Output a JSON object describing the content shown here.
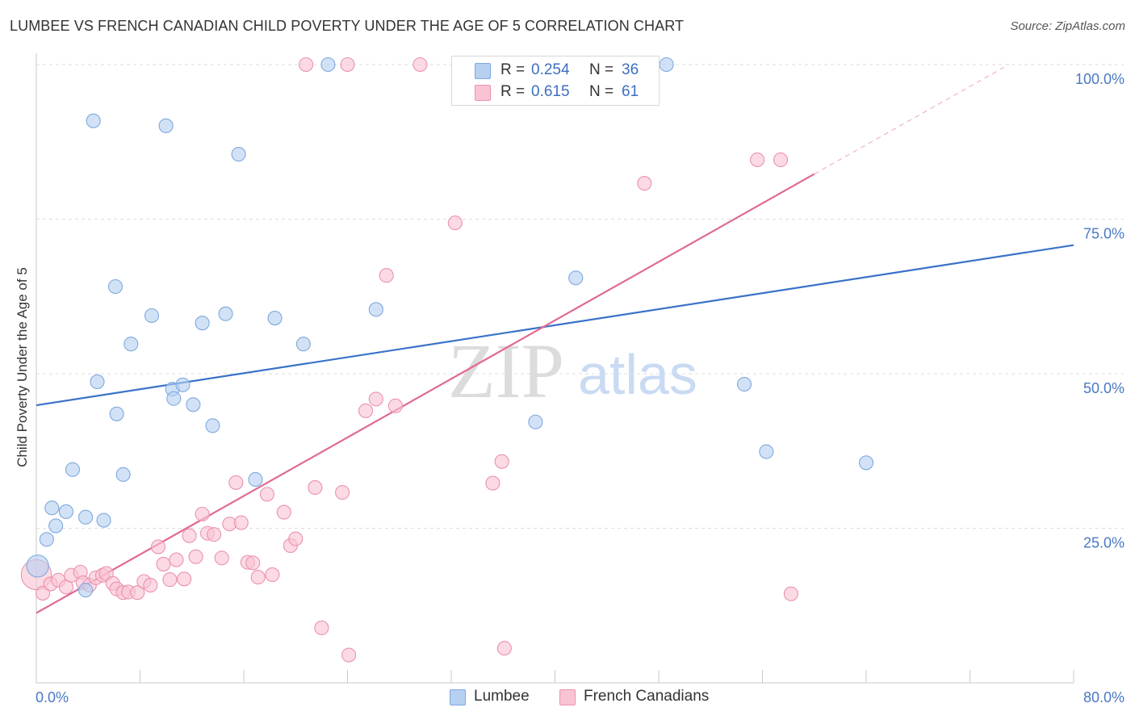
{
  "header": {
    "title": "LUMBEE VS FRENCH CANADIAN CHILD POVERTY UNDER THE AGE OF 5 CORRELATION CHART",
    "source": "Source: ZipAtlas.com"
  },
  "watermark": {
    "zip": "ZIP",
    "atlas": "atlas"
  },
  "legend": {
    "rows": [
      {
        "r_label": "R =",
        "r_value": "0.254",
        "n_label": "N =",
        "n_value": "36"
      },
      {
        "r_label": "R =",
        "r_value": "0.615",
        "n_label": "N =",
        "n_value": "61"
      }
    ]
  },
  "bottom_legend": {
    "series1": "Lumbee",
    "series2": "French Canadians"
  },
  "colors": {
    "lumbee_fill": "#b6d0f1",
    "lumbee_stroke": "#7fa8de",
    "lumbee_line": "#3a72c8",
    "french_fill": "#f8c4d4",
    "french_stroke": "#eb92ae",
    "french_line": "#e06a90",
    "grid": "#dedede",
    "axis_text": "#4a78c4"
  },
  "chart_data": {
    "type": "scatter",
    "title": "LUMBEE VS FRENCH CANADIAN CHILD POVERTY UNDER THE AGE OF 5 CORRELATION CHART",
    "xlabel": "",
    "ylabel": "Child Poverty Under the Age of 5",
    "xlim": [
      0,
      80
    ],
    "ylim": [
      0,
      100
    ],
    "x_ticks": [
      0,
      80
    ],
    "x_tick_labels": [
      "0.0%",
      "80.0%"
    ],
    "y_ticks": [
      25,
      50,
      75,
      100
    ],
    "y_tick_labels": [
      "25.0%",
      "50.0%",
      "75.0%",
      "100.0%"
    ],
    "grid": true,
    "legend_position": "top-center",
    "series": [
      {
        "name": "Lumbee",
        "r": 0.254,
        "n": 36,
        "trend": {
          "x": [
            0,
            80
          ],
          "y": [
            44.9,
            70.8
          ],
          "dashed_extension": false
        },
        "points": [
          [
            0.1,
            18.9,
            1.6
          ],
          [
            0.8,
            23.2,
            1
          ],
          [
            1.2,
            28.3,
            1
          ],
          [
            1.5,
            25.4,
            1
          ],
          [
            2.3,
            27.7,
            1
          ],
          [
            2.8,
            34.5,
            1
          ],
          [
            3.8,
            15.0,
            1
          ],
          [
            3.8,
            26.8,
            1
          ],
          [
            4.4,
            90.9,
            1
          ],
          [
            4.7,
            48.7,
            1
          ],
          [
            5.2,
            26.3,
            1
          ],
          [
            6.1,
            64.1,
            1
          ],
          [
            6.2,
            43.5,
            1
          ],
          [
            6.7,
            33.7,
            1
          ],
          [
            7.3,
            54.8,
            1
          ],
          [
            8.9,
            59.4,
            1
          ],
          [
            10.0,
            90.1,
            1
          ],
          [
            10.5,
            47.5,
            1
          ],
          [
            10.6,
            46.0,
            1
          ],
          [
            11.3,
            48.2,
            1
          ],
          [
            12.1,
            45.0,
            1
          ],
          [
            12.8,
            58.2,
            1
          ],
          [
            13.6,
            41.6,
            1
          ],
          [
            14.6,
            59.7,
            1
          ],
          [
            15.6,
            85.5,
            1
          ],
          [
            16.9,
            32.9,
            1
          ],
          [
            18.4,
            59.0,
            1
          ],
          [
            20.6,
            54.8,
            1
          ],
          [
            22.5,
            100.0,
            1
          ],
          [
            26.2,
            60.4,
            1
          ],
          [
            38.5,
            42.2,
            1
          ],
          [
            41.6,
            65.5,
            1
          ],
          [
            48.6,
            100.0,
            1
          ],
          [
            54.6,
            48.3,
            1
          ],
          [
            56.3,
            37.4,
            1
          ],
          [
            64.0,
            35.6,
            1
          ]
        ]
      },
      {
        "name": "French Canadians",
        "r": 0.615,
        "n": 61,
        "trend": {
          "x": [
            0,
            60
          ],
          "y": [
            11.3,
            82.3
          ],
          "dashed_extension_to": [
            75,
            100
          ]
        },
        "points": [
          [
            0.0,
            17.5,
            2.2
          ],
          [
            0.5,
            14.5,
            1
          ],
          [
            1.1,
            16.0,
            1
          ],
          [
            1.7,
            16.6,
            1
          ],
          [
            2.3,
            15.5,
            1
          ],
          [
            2.7,
            17.4,
            1
          ],
          [
            3.4,
            17.9,
            1
          ],
          [
            3.6,
            16.2,
            1
          ],
          [
            4.1,
            15.8,
            1
          ],
          [
            4.6,
            17.0,
            1
          ],
          [
            5.1,
            17.4,
            1
          ],
          [
            5.4,
            17.7,
            1
          ],
          [
            5.9,
            16.1,
            1
          ],
          [
            6.2,
            15.2,
            1
          ],
          [
            6.7,
            14.6,
            1
          ],
          [
            7.1,
            14.7,
            1
          ],
          [
            7.8,
            14.6,
            1
          ],
          [
            8.3,
            16.4,
            1
          ],
          [
            8.8,
            15.8,
            1
          ],
          [
            9.4,
            22.0,
            1
          ],
          [
            9.8,
            19.2,
            1
          ],
          [
            10.3,
            16.7,
            1
          ],
          [
            10.8,
            19.9,
            1
          ],
          [
            11.4,
            16.8,
            1
          ],
          [
            11.8,
            23.8,
            1
          ],
          [
            12.3,
            20.4,
            1
          ],
          [
            12.8,
            27.3,
            1
          ],
          [
            13.2,
            24.2,
            1
          ],
          [
            13.7,
            24.0,
            1
          ],
          [
            14.3,
            20.2,
            1
          ],
          [
            14.9,
            25.7,
            1
          ],
          [
            15.4,
            32.4,
            1
          ],
          [
            15.8,
            25.9,
            1
          ],
          [
            16.3,
            19.5,
            1
          ],
          [
            16.7,
            19.4,
            1
          ],
          [
            17.1,
            17.1,
            1
          ],
          [
            17.8,
            30.5,
            1
          ],
          [
            18.2,
            17.5,
            1
          ],
          [
            19.1,
            27.6,
            1
          ],
          [
            19.6,
            22.2,
            1
          ],
          [
            20.0,
            23.3,
            1
          ],
          [
            20.8,
            100.0,
            1
          ],
          [
            21.5,
            31.6,
            1
          ],
          [
            22.0,
            8.9,
            1
          ],
          [
            23.6,
            30.8,
            1
          ],
          [
            24.0,
            100.0,
            1
          ],
          [
            24.1,
            4.5,
            1
          ],
          [
            25.4,
            44.0,
            1
          ],
          [
            26.2,
            45.9,
            1
          ],
          [
            27.0,
            65.9,
            1
          ],
          [
            27.7,
            44.8,
            1
          ],
          [
            29.6,
            100.0,
            1
          ],
          [
            32.3,
            74.4,
            1
          ],
          [
            35.2,
            32.3,
            1
          ],
          [
            35.9,
            35.8,
            1
          ],
          [
            36.1,
            5.6,
            1
          ],
          [
            37.7,
            100.0,
            1
          ],
          [
            46.9,
            80.8,
            1
          ],
          [
            55.6,
            84.6,
            1
          ],
          [
            57.4,
            84.6,
            1
          ],
          [
            58.2,
            14.4,
            1
          ]
        ]
      }
    ]
  }
}
